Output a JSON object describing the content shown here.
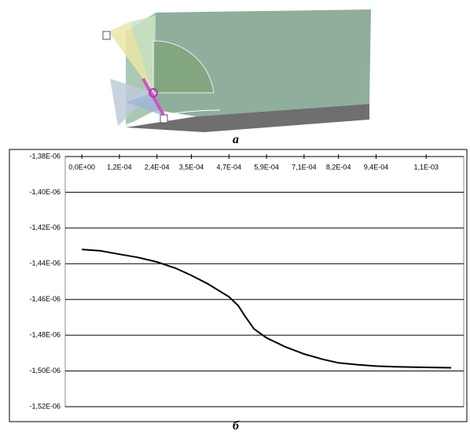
{
  "panel_a": {
    "label": "a"
  },
  "chart_data": {
    "type": "line",
    "label": "б",
    "color": "#000000",
    "x": [
      0,
      6e-05,
      0.00012,
      0.00018,
      0.00024,
      0.0003,
      0.00035,
      0.0004,
      0.00047,
      0.0005,
      0.00052,
      0.00055,
      0.00059,
      0.00065,
      0.00071,
      0.00077,
      0.00082,
      0.00088,
      0.00094,
      0.001,
      0.0011,
      0.00118
    ],
    "values": [
      -1.432e-06,
      -1.4328e-06,
      -1.4347e-06,
      -1.4365e-06,
      -1.439e-06,
      -1.4425e-06,
      -1.4465e-06,
      -1.451e-06,
      -1.4585e-06,
      -1.4635e-06,
      -1.469e-06,
      -1.4765e-06,
      -1.4815e-06,
      -1.4865e-06,
      -1.4905e-06,
      -1.4935e-06,
      -1.4955e-06,
      -1.4965e-06,
      -1.4973e-06,
      -1.4977e-06,
      -1.498e-06,
      -1.4982e-06
    ],
    "xlim": [
      -5.3e-05,
      0.00122
    ],
    "ylim": [
      -1.52e-06,
      -1.38e-06
    ],
    "xticks": [
      {
        "value": 0,
        "label": "0,0E+00"
      },
      {
        "value": 0.00012,
        "label": "1,2E-04"
      },
      {
        "value": 0.00024,
        "label": "2,4E-04"
      },
      {
        "value": 0.00035,
        "label": "3,5E-04"
      },
      {
        "value": 0.00047,
        "label": "4,7E-04"
      },
      {
        "value": 0.00059,
        "label": "5,9E-04"
      },
      {
        "value": 0.00071,
        "label": "7,1E-04"
      },
      {
        "value": 0.00082,
        "label": "8,2E-04"
      },
      {
        "value": 0.00094,
        "label": "9,4E-04"
      },
      {
        "value": 0.0011,
        "label": "1,1E-03"
      }
    ],
    "yticks": [
      {
        "value": -1.38e-06,
        "label": "-1,38E-06"
      },
      {
        "value": -1.4e-06,
        "label": "-1,40E-06"
      },
      {
        "value": -1.42e-06,
        "label": "-1,42E-06"
      },
      {
        "value": -1.44e-06,
        "label": "-1,44E-06"
      },
      {
        "value": -1.46e-06,
        "label": "-1,46E-06"
      },
      {
        "value": -1.48e-06,
        "label": "-1,48E-06"
      },
      {
        "value": -1.5e-06,
        "label": "-1,50E-06"
      },
      {
        "value": -1.52e-06,
        "label": "-1,52E-06"
      }
    ],
    "grid": true
  }
}
